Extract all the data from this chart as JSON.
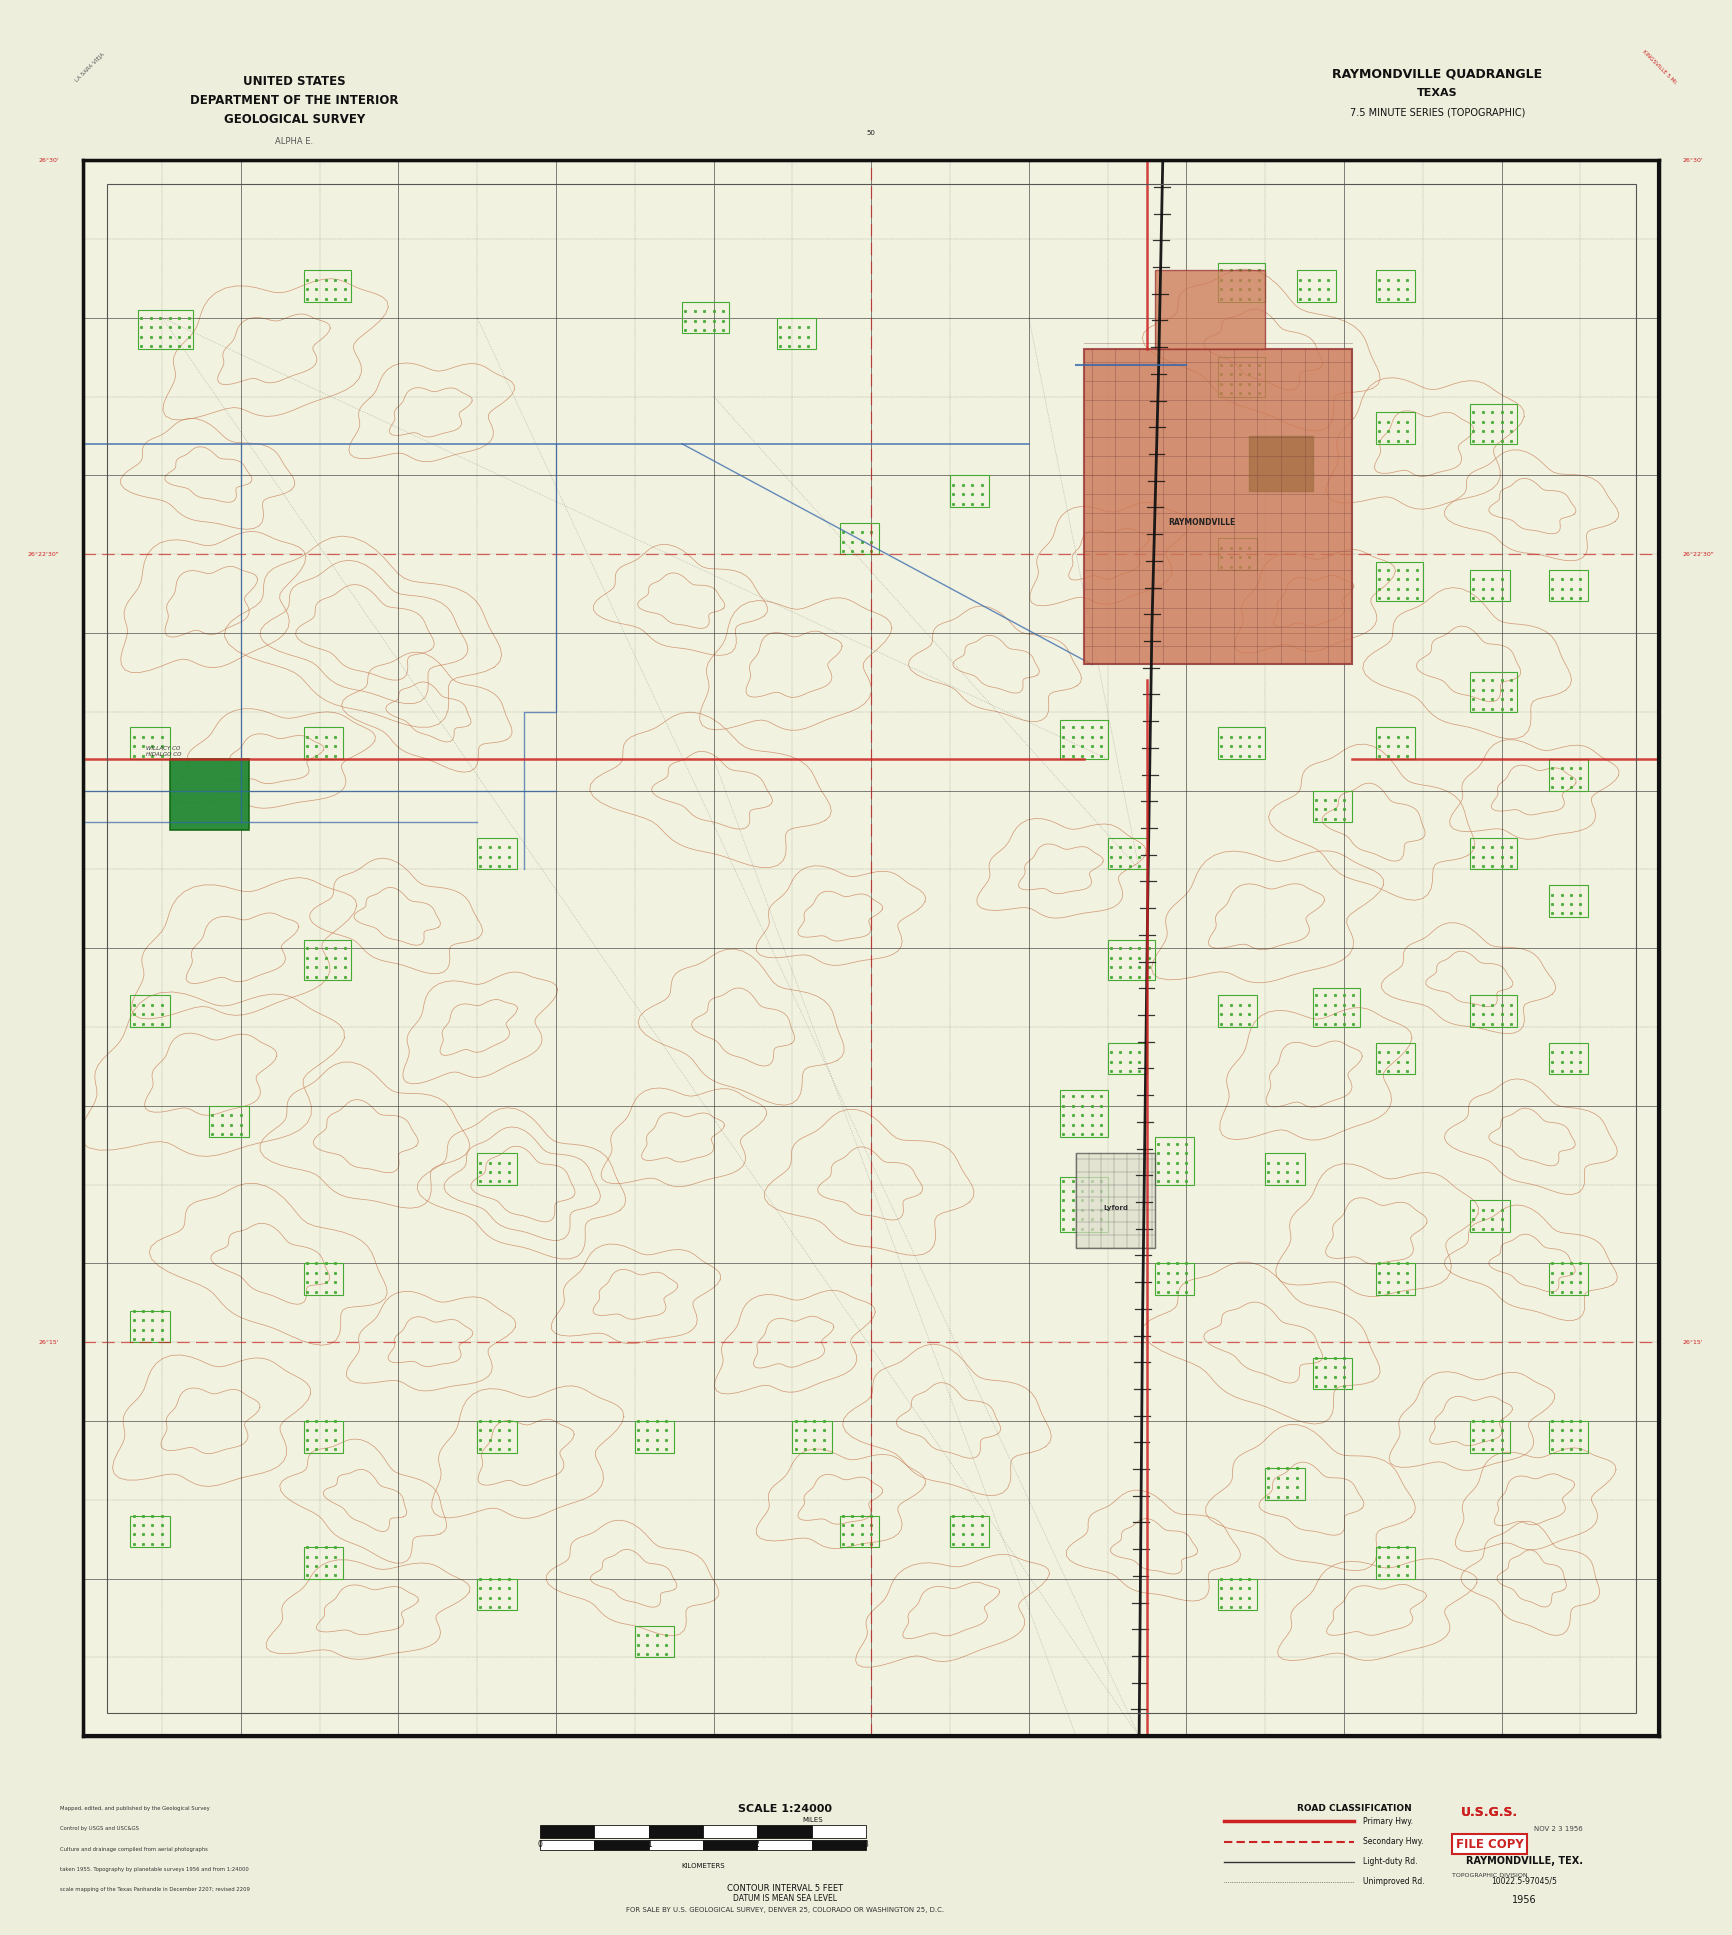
{
  "bg_color": "#eeeedd",
  "map_bg": "#f2f2e0",
  "title_top_left": [
    "UNITED STATES",
    "DEPARTMENT OF THE INTERIOR",
    "GEOLOGICAL SURVEY"
  ],
  "title_top_right": [
    "RAYMONDVILLE QUADRANGLE",
    "TEXAS",
    "7.5 MINUTE SERIES (TOPOGRAPHIC)"
  ],
  "city_name": "RAYMONDVILLE",
  "city2_name": "Lyford",
  "contour_color": "#c8825a",
  "water_color": "#3366aa",
  "veg_color": "#44aa33",
  "veg_hatch_color": "#33882a",
  "road_primary_color": "#cc2222",
  "road_secondary_color": "#222222",
  "railroad_color": "#111111",
  "grid_color": "#333333",
  "dashed_red_color": "#cc2222",
  "map_border_color": "#111111",
  "city_fill": "#cc7755",
  "city_edge": "#993333",
  "big_green_fill": "#228833",
  "big_green2_fill": "#336622",
  "scale_text": "SCALE 1:24000",
  "contour_interval_text": "CONTOUR INTERVAL 5 FEET",
  "datum_text": "DATUM IS MEAN SEA LEVEL",
  "year": "1956",
  "usgs_label": "RAYMONDVILLE, TEX.",
  "usgs_quad": "10022.5-97045/5",
  "stamp_red": "#cc2222",
  "bottom_center_text": "FOR SALE BY U.S. GEOLOGICAL SURVEY, DENVER 25, COLORADO OR WASHINGTON 25, D.C.",
  "left_header_small": "MAPPED, EDITED, AND PUBLISHED BY THE GEOLOGICAL SURVEY",
  "road_class_title": "ROAD CLASSIFICATION"
}
